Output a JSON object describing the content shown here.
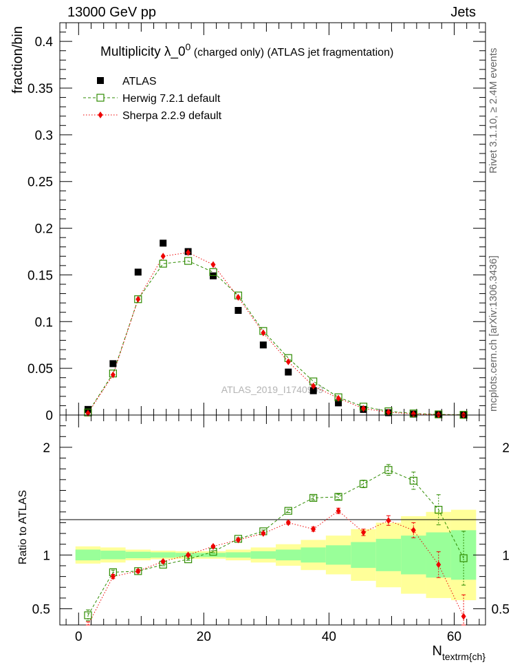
{
  "header": {
    "left": "13000 GeV pp",
    "right": "Jets"
  },
  "side_notes": {
    "rivet": "Rivet 3.1.10, ≥ 2.4M events",
    "mcplots": "mcplots.cern.ch [arXiv:1306.3436]"
  },
  "colors": {
    "data": "#000000",
    "herwig": "#2e8b00",
    "sherpa": "#ee0000",
    "band_inner": "#99ff99",
    "band_outer": "#ffff99",
    "watermark": "#b3b3b3"
  },
  "chart_data": [
    {
      "type": "scatter",
      "panel": "main",
      "title_main": "Multiplicity  λ_0",
      "title_sup": "0",
      "title_rest": " (charged only) (ATLAS jet fragmentation)",
      "ylabel": "fraction/bin",
      "watermark": "ATLAS_2019_I1740909",
      "xlim": [
        -3,
        65
      ],
      "ylim": [
        0,
        0.42
      ],
      "y_ticks": [
        0,
        0.05,
        0.1,
        0.15,
        0.2,
        0.25,
        0.3,
        0.35,
        0.4
      ],
      "y_tick_labels": [
        "0",
        "0.05",
        "0.1",
        "0.15",
        "0.2",
        "0.25",
        "0.3",
        "0.35",
        "0.4"
      ],
      "legend_position": "top-left",
      "x": [
        1.5,
        5.5,
        9.5,
        13.5,
        17.5,
        21.5,
        25.5,
        29.5,
        33.5,
        37.5,
        41.5,
        45.5,
        49.5,
        53.5,
        57.5,
        61.5
      ],
      "series": [
        {
          "name": "ATLAS",
          "marker": "square",
          "values": [
            0.006,
            0.055,
            0.153,
            0.184,
            0.175,
            0.149,
            0.112,
            0.075,
            0.046,
            0.026,
            0.013,
            0.006,
            0.0025,
            0.001,
            0.0005,
            0.0002
          ]
        },
        {
          "name": "Herwig 7.2.1 default",
          "marker": "open-square",
          "values": [
            0.0027,
            0.0445,
            0.124,
            0.162,
            0.165,
            0.153,
            0.128,
            0.09,
            0.061,
            0.036,
            0.019,
            0.009,
            0.004,
            0.0017,
            0.0007,
            0.0002
          ]
        },
        {
          "name": "Sherpa 2.2.9 default",
          "marker": "diamond",
          "values": [
            0.002,
            0.043,
            0.124,
            0.17,
            0.174,
            0.161,
            0.126,
            0.088,
            0.057,
            0.031,
            0.018,
            0.007,
            0.003,
            0.0012,
            0.0004,
            0.0001
          ]
        }
      ]
    },
    {
      "type": "line",
      "panel": "ratio",
      "ylabel": "Ratio to ATLAS",
      "xlabel_main": "N",
      "xlabel_sub": "textrm{ch}",
      "xlim": [
        -3,
        65
      ],
      "ylim": [
        0.35,
        2.3
      ],
      "x_ticks": [
        0,
        20,
        40,
        60
      ],
      "x_tick_labels": [
        "0",
        "20",
        "40",
        "60"
      ],
      "y_ticks": [
        0.5,
        1,
        2
      ],
      "y_tick_labels": [
        "0.5",
        "1",
        "2"
      ],
      "x": [
        1.5,
        5.5,
        9.5,
        13.5,
        17.5,
        21.5,
        25.5,
        29.5,
        33.5,
        37.5,
        41.5,
        45.5,
        49.5,
        53.5,
        57.5,
        61.5
      ],
      "band_inner": [
        0.05,
        0.04,
        0.03,
        0.025,
        0.02,
        0.02,
        0.025,
        0.035,
        0.05,
        0.07,
        0.09,
        0.12,
        0.15,
        0.18,
        0.21,
        0.23
      ],
      "band_outer": [
        0.08,
        0.07,
        0.05,
        0.04,
        0.035,
        0.035,
        0.05,
        0.07,
        0.1,
        0.14,
        0.18,
        0.24,
        0.3,
        0.36,
        0.4,
        0.42
      ],
      "series": [
        {
          "name": "Herwig 7.2.1 default",
          "values": [
            0.44,
            0.84,
            0.85,
            0.91,
            0.96,
            1.03,
            1.15,
            1.22,
            1.41,
            1.53,
            1.54,
            1.66,
            1.79,
            1.69,
            1.42,
            0.97
          ],
          "errors": [
            0.05,
            0.02,
            0.015,
            0.01,
            0.01,
            0.01,
            0.01,
            0.012,
            0.015,
            0.02,
            0.025,
            0.035,
            0.05,
            0.08,
            0.14,
            0.25
          ]
        },
        {
          "name": "Sherpa 2.2.9 default",
          "values": [
            0.34,
            0.8,
            0.85,
            0.94,
            1.0,
            1.08,
            1.14,
            1.2,
            1.3,
            1.24,
            1.41,
            1.21,
            1.32,
            1.23,
            0.91,
            0.43
          ],
          "errors": [
            0.04,
            0.02,
            0.015,
            0.01,
            0.01,
            0.01,
            0.01,
            0.012,
            0.015,
            0.02,
            0.025,
            0.03,
            0.045,
            0.07,
            0.12,
            0.2
          ]
        }
      ]
    }
  ]
}
